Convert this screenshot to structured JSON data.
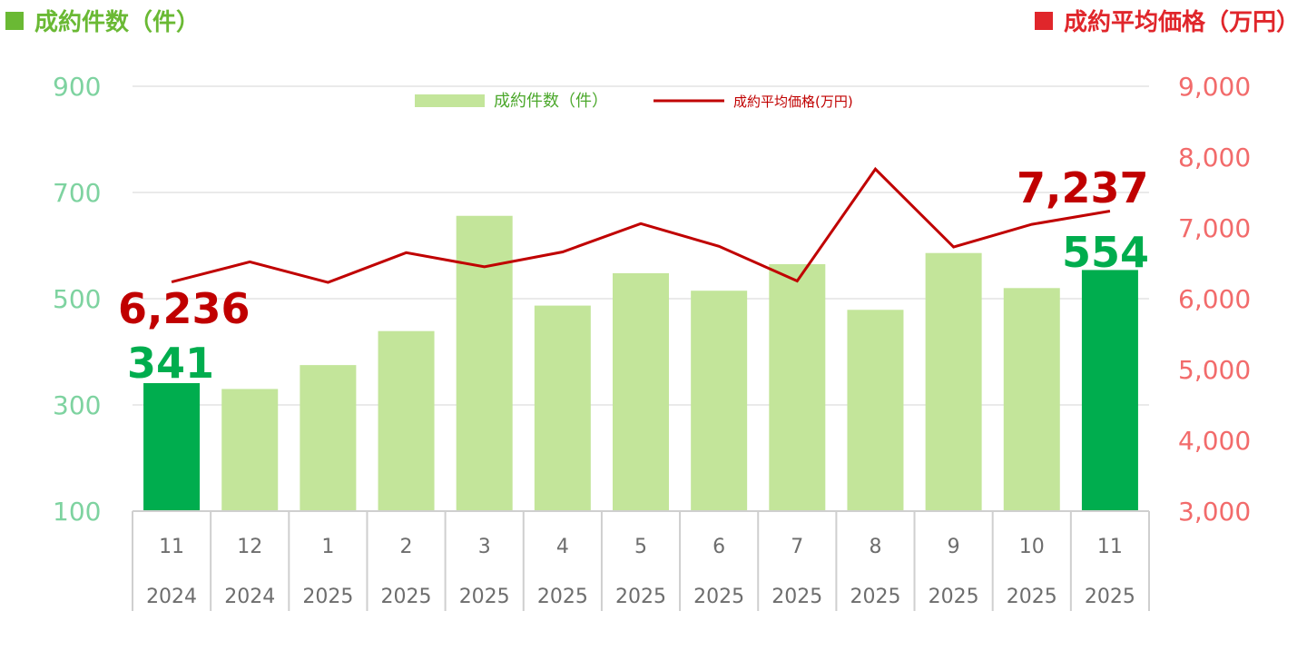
{
  "headers": {
    "left": "成約件数（件）",
    "right": "成約平均価格（万円）"
  },
  "colors": {
    "bar": "#c3e59a",
    "bar_highlight": "#00ad4e",
    "line": "#c00000",
    "left_axis": "#7ed3a0",
    "right_axis": "#f26b6b",
    "grid": "#e3e3e3",
    "frame": "#cfcfcf"
  },
  "legend": {
    "bar_label": "成約件数（件）",
    "line_label": "成約平均価格(万円)"
  },
  "chart_data": {
    "type": "bar",
    "categories": [
      {
        "month": "11",
        "year": "2024"
      },
      {
        "month": "12",
        "year": "2024"
      },
      {
        "month": "1",
        "year": "2025"
      },
      {
        "month": "2",
        "year": "2025"
      },
      {
        "month": "3",
        "year": "2025"
      },
      {
        "month": "4",
        "year": "2025"
      },
      {
        "month": "5",
        "year": "2025"
      },
      {
        "month": "6",
        "year": "2025"
      },
      {
        "month": "7",
        "year": "2025"
      },
      {
        "month": "8",
        "year": "2025"
      },
      {
        "month": "9",
        "year": "2025"
      },
      {
        "month": "10",
        "year": "2025"
      },
      {
        "month": "11",
        "year": "2025"
      }
    ],
    "series": [
      {
        "name": "成約件数（件）",
        "type": "bar",
        "axis": "left",
        "values": [
          341,
          330,
          375,
          439,
          656,
          487,
          548,
          515,
          565,
          479,
          586,
          520,
          554
        ],
        "highlight": [
          true,
          false,
          false,
          false,
          false,
          false,
          false,
          false,
          false,
          false,
          false,
          false,
          true
        ]
      },
      {
        "name": "成約平均価格(万円)",
        "type": "line",
        "axis": "right",
        "values": [
          6236,
          6520,
          6230,
          6650,
          6450,
          6660,
          7060,
          6740,
          6250,
          7830,
          6730,
          7050,
          7237
        ]
      }
    ],
    "left_axis": {
      "ylim": [
        100,
        900
      ],
      "ticks": [
        "100",
        "300",
        "500",
        "700",
        "900"
      ]
    },
    "right_axis": {
      "ylim": [
        3000,
        9000
      ],
      "ticks": [
        "3,000",
        "4,000",
        "5,000",
        "6,000",
        "7,000",
        "8,000",
        "9,000"
      ]
    },
    "annotations": {
      "first_bar": "341",
      "first_line": "6,236",
      "last_bar": "554",
      "last_line": "7,237"
    },
    "grid": true,
    "legend_position": "top-center"
  }
}
